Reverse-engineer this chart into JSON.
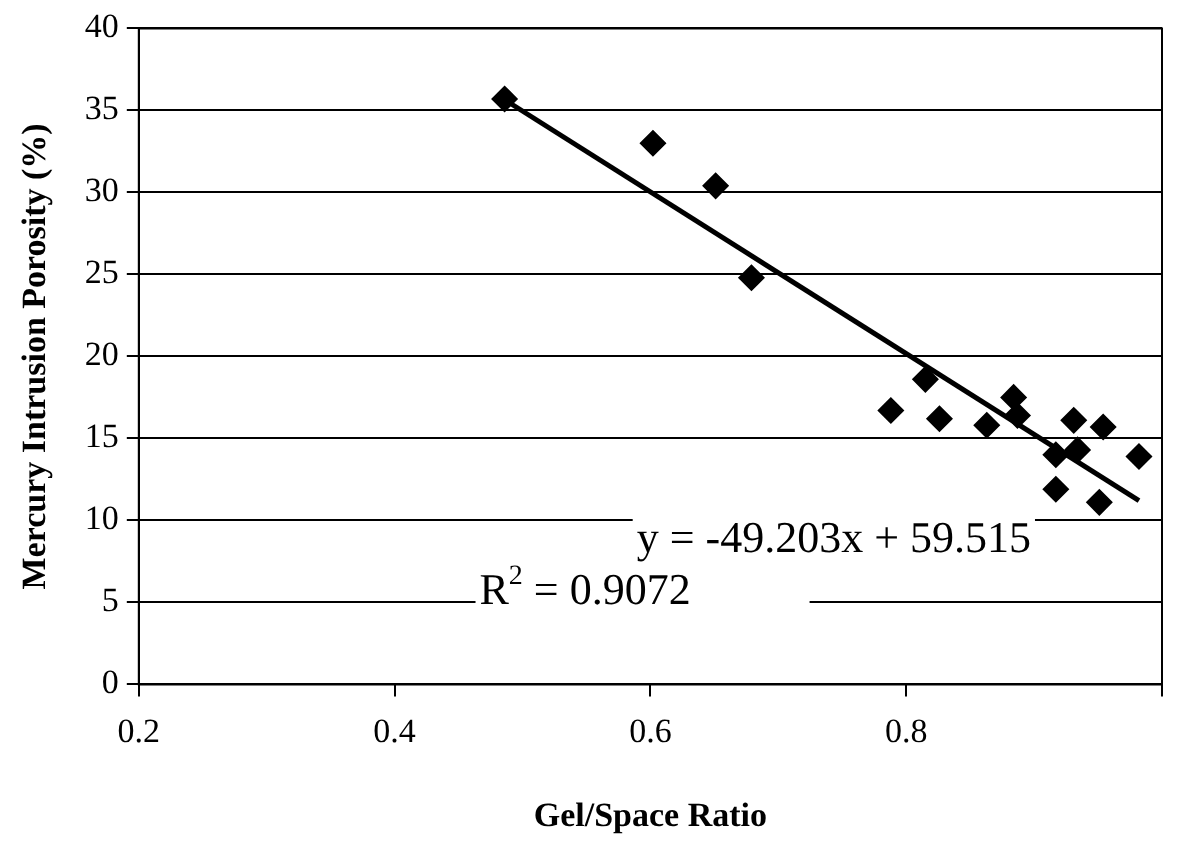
{
  "chart_data": {
    "type": "scatter",
    "xlabel": "Gel/Space Ratio",
    "ylabel": "Mercury Intrusion Porosity (%)",
    "xlim": [
      0.2,
      1.0
    ],
    "xticks": [
      0.2,
      0.4,
      0.6,
      0.8,
      {
        "value": 1.0,
        "label": null
      }
    ],
    "ylim": [
      0,
      40
    ],
    "yticks": [
      0,
      5,
      10,
      15,
      20,
      25,
      30,
      35,
      40
    ],
    "grid": "y",
    "legend": false,
    "marker": "diamond",
    "series": [
      {
        "color": "#000000",
        "x": [
          0.486,
          0.602,
          0.651,
          0.679,
          0.815,
          0.788,
          0.826,
          0.863,
          0.884,
          0.887,
          0.931,
          0.954,
          0.917,
          0.934,
          0.982,
          0.917,
          0.951
        ],
        "values": [
          35.7,
          33.0,
          30.4,
          24.8,
          18.6,
          16.7,
          16.2,
          15.8,
          17.5,
          16.4,
          16.1,
          15.7,
          14.0,
          14.3,
          13.9,
          11.9,
          11.1
        ]
      },
      {
        "type": "line",
        "color": "#000000",
        "marker": "none",
        "x": [
          0.483,
          0.982
        ],
        "values": [
          35.8,
          11.2
        ]
      }
    ],
    "annotations": [
      "y = -49.203x + 59.515",
      "R$^{2}$ = 0.9072"
    ]
  }
}
